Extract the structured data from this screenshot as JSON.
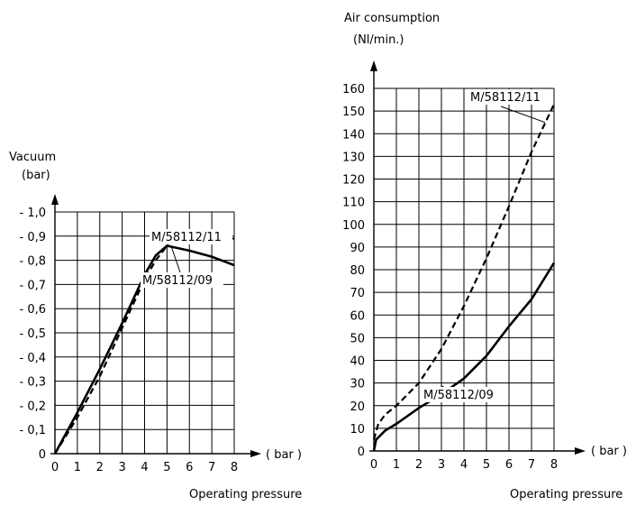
{
  "chart_data": [
    {
      "type": "line",
      "y_axis_title": "Vacuum",
      "y_axis_unit": "(bar)",
      "x_axis_unit": "( bar )",
      "x_axis_title": "Operating pressure",
      "x_ticks": [
        "0",
        "1",
        "2",
        "3",
        "4",
        "5",
        "6",
        "7",
        "8"
      ],
      "y_ticks": [
        "0",
        "- 0,1",
        "- 0,2",
        "- 0,3",
        "- 0,4",
        "- 0,5",
        "- 0,6",
        "- 0,7",
        "- 0,8",
        "- 0,9",
        "- 1,0"
      ],
      "xlim": [
        0,
        8
      ],
      "ylim": [
        0,
        1.0
      ],
      "grid": true,
      "series": [
        {
          "name": "M/58112/11",
          "style": "dashed",
          "x": [
            0,
            1,
            2,
            3,
            4,
            4.5,
            5,
            5.3,
            8
          ],
          "y": [
            0,
            0.15,
            0.32,
            0.52,
            0.72,
            0.8,
            0.86,
            0.905,
            0.89
          ]
        },
        {
          "name": "M/58112/09",
          "style": "solid",
          "x": [
            0,
            1,
            2,
            3,
            4,
            4.5,
            5,
            6,
            7,
            8
          ],
          "y": [
            0,
            0.17,
            0.35,
            0.54,
            0.74,
            0.82,
            0.86,
            0.84,
            0.815,
            0.78
          ]
        }
      ]
    },
    {
      "type": "line",
      "y_axis_title": "Air consumption",
      "y_axis_unit": "(Nl/min.)",
      "x_axis_unit": "( bar )",
      "x_axis_title": "Operating pressure",
      "x_ticks": [
        "0",
        "1",
        "2",
        "3",
        "4",
        "5",
        "6",
        "7",
        "8"
      ],
      "y_ticks": [
        "0",
        "10",
        "20",
        "30",
        "40",
        "50",
        "60",
        "70",
        "80",
        "90",
        "100",
        "110",
        "120",
        "130",
        "140",
        "150",
        "160"
      ],
      "xlim": [
        0,
        8
      ],
      "ylim": [
        0,
        160
      ],
      "grid": true,
      "series": [
        {
          "name": "M/58112/11",
          "style": "dashed",
          "x": [
            0,
            0.2,
            0.5,
            1,
            2,
            3,
            4,
            5,
            6,
            7,
            8
          ],
          "y": [
            5,
            12,
            16,
            20,
            30,
            45,
            64,
            85,
            108,
            132,
            153
          ]
        },
        {
          "name": "M/58112/09",
          "style": "solid",
          "x": [
            0,
            0.1,
            0.5,
            1,
            2,
            3,
            4,
            5,
            6,
            7,
            8
          ],
          "y": [
            0,
            5,
            9,
            12,
            19,
            25,
            32,
            42,
            55,
            67,
            83
          ]
        }
      ]
    }
  ]
}
